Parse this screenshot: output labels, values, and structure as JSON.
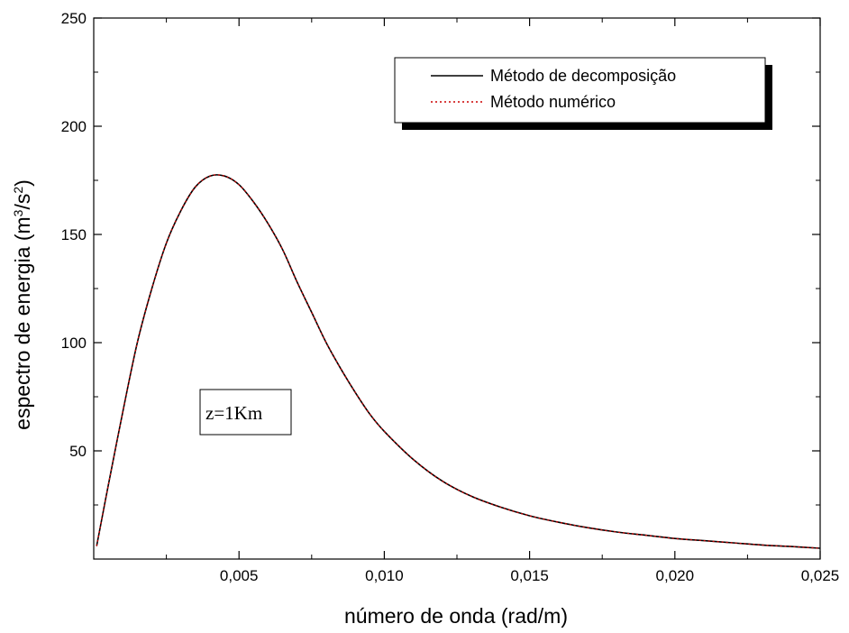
{
  "chart_data": {
    "type": "line",
    "title": "",
    "xlabel": "número de onda (rad/m)",
    "ylabel_main": "espectro de energia (m",
    "ylabel_sup1": "3",
    "ylabel_mid": "/s",
    "ylabel_sup2": "2",
    "ylabel_end": ")",
    "xlim": [
      0,
      0.025
    ],
    "ylim": [
      0,
      250
    ],
    "x_ticks": [
      0.005,
      0.01,
      0.015,
      0.02,
      0.025
    ],
    "x_tick_labels": [
      "0,005",
      "0,010",
      "0,015",
      "0,020",
      "0,025"
    ],
    "y_ticks": [
      50,
      100,
      150,
      200,
      250
    ],
    "y_tick_labels": [
      "50",
      "100",
      "150",
      "200",
      "250"
    ],
    "grid": false,
    "legend_position": "top-right",
    "annotation": "z=1Km",
    "series": [
      {
        "name": "Método de decomposição",
        "color": "#000000",
        "style": "solid",
        "x": [
          0.0001,
          0.0005,
          0.001,
          0.0015,
          0.002,
          0.0025,
          0.003,
          0.0035,
          0.004,
          0.0045,
          0.005,
          0.0055,
          0.006,
          0.0065,
          0.007,
          0.0075,
          0.008,
          0.0085,
          0.009,
          0.0095,
          0.01,
          0.011,
          0.012,
          0.013,
          0.014,
          0.015,
          0.016,
          0.017,
          0.018,
          0.019,
          0.02,
          0.021,
          0.022,
          0.023,
          0.024,
          0.025
        ],
        "y": [
          6,
          34,
          68,
          100,
          125,
          146,
          161,
          172,
          177,
          177,
          173,
          165,
          155,
          143,
          128,
          114,
          100,
          88,
          77,
          67,
          59,
          46,
          36,
          29,
          24,
          20,
          17,
          14.5,
          12.5,
          11,
          9.5,
          8.5,
          7.5,
          6.5,
          5.8,
          5
        ]
      },
      {
        "name": "Método numérico",
        "color": "#cc0000",
        "style": "dotted",
        "x": [
          0.0001,
          0.0005,
          0.001,
          0.0015,
          0.002,
          0.0025,
          0.003,
          0.0035,
          0.004,
          0.0045,
          0.005,
          0.0055,
          0.006,
          0.0065,
          0.007,
          0.0075,
          0.008,
          0.0085,
          0.009,
          0.0095,
          0.01,
          0.011,
          0.012,
          0.013,
          0.014,
          0.015,
          0.016,
          0.017,
          0.018,
          0.019,
          0.02,
          0.021,
          0.022,
          0.023,
          0.024,
          0.025
        ],
        "y": [
          6,
          34,
          68,
          100,
          125,
          146,
          161,
          172,
          177,
          177,
          173,
          165,
          155,
          143,
          128,
          114,
          100,
          88,
          77,
          67,
          59,
          46,
          36,
          29,
          24,
          20,
          17,
          14.5,
          12.5,
          11,
          9.5,
          8.5,
          7.5,
          6.5,
          5.8,
          5
        ]
      }
    ]
  }
}
